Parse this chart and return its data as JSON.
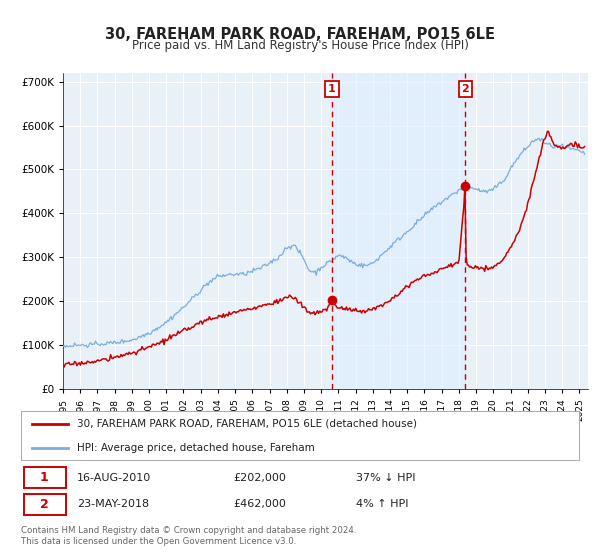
{
  "title": "30, FAREHAM PARK ROAD, FAREHAM, PO15 6LE",
  "subtitle": "Price paid vs. HM Land Registry's House Price Index (HPI)",
  "background_color": "#ffffff",
  "plot_bg_color": "#e8f0f8",
  "grid_color": "#ffffff",
  "sale1_date": 2010.62,
  "sale1_price": 202000,
  "sale2_date": 2018.38,
  "sale2_price": 462000,
  "red_line_color": "#cc0000",
  "blue_line_color": "#7aade0",
  "marker_color": "#cc0000",
  "vline_color": "#cc0000",
  "shade_color": "#ddeeff",
  "legend_line1": "30, FAREHAM PARK ROAD, FAREHAM, PO15 6LE (detached house)",
  "legend_line2": "HPI: Average price, detached house, Fareham",
  "footer1": "Contains HM Land Registry data © Crown copyright and database right 2024.",
  "footer2": "This data is licensed under the Open Government Licence v3.0.",
  "xmin": 1995.0,
  "xmax": 2025.5,
  "ymin": 0,
  "ymax": 720000,
  "yticks": [
    0,
    100000,
    200000,
    300000,
    400000,
    500000,
    600000,
    700000
  ],
  "ytick_labels": [
    "£0",
    "£100K",
    "£200K",
    "£300K",
    "£400K",
    "£500K",
    "£600K",
    "£700K"
  ]
}
